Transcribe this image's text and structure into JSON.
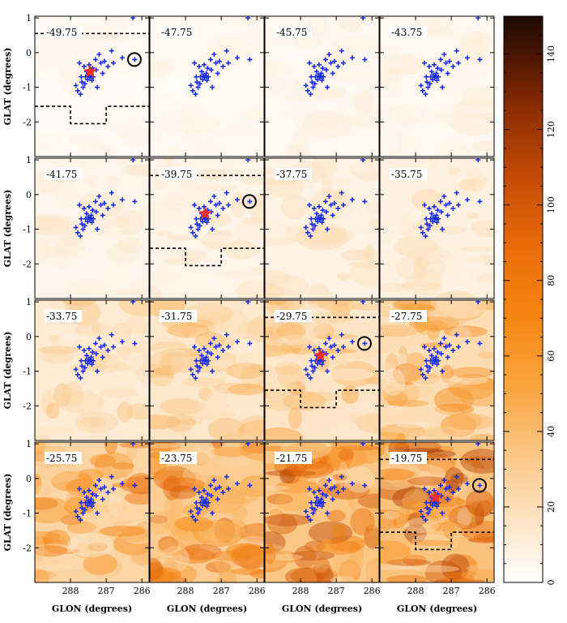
{
  "chart_data": {
    "type": "heatmap",
    "title": "",
    "xlabel": "GLON (degrees)",
    "ylabel": "GLAT (degrees)",
    "xlim": [
      289.0,
      285.8
    ],
    "ylim": [
      -3.0,
      1.05
    ],
    "x_ticks": [
      288,
      287,
      286
    ],
    "y_ticks": [
      1,
      0,
      -1,
      -2
    ],
    "colorbar": {
      "range": [
        0,
        150
      ],
      "ticks": [
        0,
        20,
        40,
        60,
        80,
        100,
        120,
        140
      ],
      "colors": [
        "#ffffff",
        "#fde6c8",
        "#fbc98a",
        "#f9a43d",
        "#f6830f",
        "#e86a0a",
        "#c24a06",
        "#8a2c03",
        "#4a1502",
        "#1c0a02"
      ]
    },
    "velocity_channels": [
      "-49.75",
      "-47.75",
      "-45.75",
      "-43.75",
      "-41.75",
      "-39.75",
      "-37.75",
      "-35.75",
      "-33.75",
      "-31.75",
      "-29.75",
      "-27.75",
      "-25.75",
      "-23.75",
      "-21.75",
      "-19.75"
    ],
    "channel_mean_intensity": [
      6,
      7,
      8,
      9,
      11,
      13,
      15,
      17,
      24,
      28,
      32,
      40,
      48,
      56,
      62,
      66
    ],
    "sources": [
      {
        "l": 287.75,
        "b": -0.3
      },
      {
        "l": 287.62,
        "b": -0.4
      },
      {
        "l": 287.55,
        "b": -0.55
      },
      {
        "l": 287.48,
        "b": -0.35
      },
      {
        "l": 287.42,
        "b": -0.6
      },
      {
        "l": 287.38,
        "b": -0.45
      },
      {
        "l": 287.3,
        "b": -0.2
      },
      {
        "l": 287.28,
        "b": -0.5
      },
      {
        "l": 287.2,
        "b": -0.05
      },
      {
        "l": 287.15,
        "b": -0.3
      },
      {
        "l": 287.1,
        "b": -0.6
      },
      {
        "l": 287.05,
        "b": -0.25
      },
      {
        "l": 286.95,
        "b": -0.4
      },
      {
        "l": 286.85,
        "b": 0.05
      },
      {
        "l": 286.8,
        "b": -0.3
      },
      {
        "l": 286.55,
        "b": -0.15
      },
      {
        "l": 286.25,
        "b": 1.0
      },
      {
        "l": 286.2,
        "b": -0.2
      },
      {
        "l": 287.85,
        "b": -0.95
      },
      {
        "l": 287.8,
        "b": -1.1
      },
      {
        "l": 287.68,
        "b": -0.85
      },
      {
        "l": 287.65,
        "b": -1.0
      },
      {
        "l": 287.58,
        "b": -0.7
      },
      {
        "l": 287.52,
        "b": -0.78
      },
      {
        "l": 287.5,
        "b": -0.65
      },
      {
        "l": 287.46,
        "b": -0.72
      },
      {
        "l": 287.44,
        "b": -0.68
      },
      {
        "l": 287.4,
        "b": -0.8
      },
      {
        "l": 287.36,
        "b": -0.7
      },
      {
        "l": 287.7,
        "b": -0.7
      },
      {
        "l": 287.6,
        "b": -0.9
      },
      {
        "l": 287.72,
        "b": -1.2
      },
      {
        "l": 287.25,
        "b": -1.0
      }
    ],
    "star": {
      "l": 287.45,
      "b": -0.55
    },
    "circled_source": {
      "l": 286.21,
      "b": -0.2
    },
    "boundary_top_b": 0.55,
    "boundary_bottom": {
      "b_outer": -1.55,
      "b_inner": -2.05,
      "l_start": 288.0,
      "l_end": 287.0
    },
    "boundary_panels": [
      0,
      5,
      10,
      15
    ]
  }
}
